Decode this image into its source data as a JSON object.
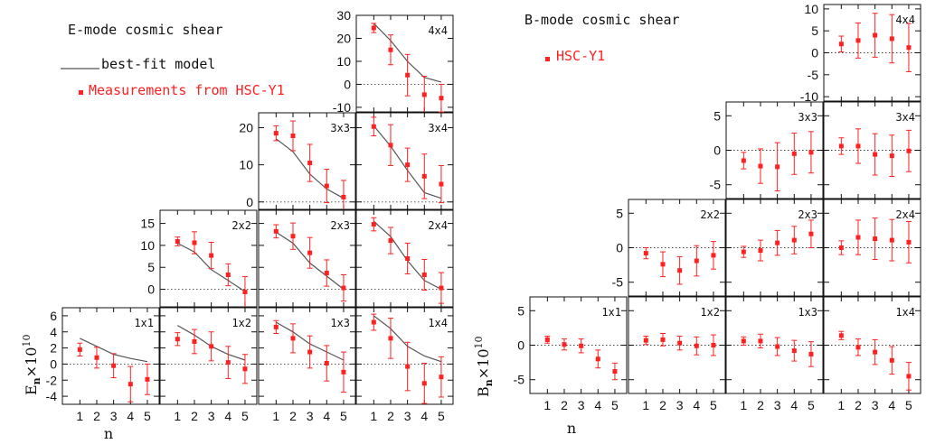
{
  "chart_data": [
    {
      "type": "scatter",
      "title": "E-mode cosmic shear",
      "xlabel": "n",
      "ylabel_main": "E",
      "ylabel_sub": "n",
      "ylabel_factor": "×10",
      "ylabel_exp": "10",
      "legend": {
        "model": "best-fit model",
        "data": "Measurements from HSC-Y1"
      },
      "x_ticks": [
        "1",
        "2",
        "3",
        "4",
        "5"
      ],
      "colors": {
        "data": "#ff2020",
        "model": "#555555",
        "zero": "#444444"
      },
      "panels": [
        {
          "name": "4x4",
          "ylim": [
            -12,
            30
          ],
          "yticks": [
            -10,
            0,
            10,
            20,
            30
          ],
          "y": [
            24.5,
            15,
            4,
            -4.5,
            -6
          ],
          "err": [
            2,
            6.5,
            9,
            8,
            6
          ],
          "model": [
            26.5,
            19,
            10,
            3,
            1
          ]
        },
        {
          "name": "3x3",
          "ylim": [
            -2,
            24
          ],
          "yticks": [
            0,
            10,
            20
          ],
          "y": [
            18.5,
            17.8,
            10.5,
            4.3,
            1.3
          ],
          "err": [
            2,
            4,
            5,
            4.5,
            4.5
          ],
          "model": [
            17,
            13.5,
            7.5,
            3.5,
            1
          ]
        },
        {
          "name": "3x4",
          "ylim": [
            -2,
            24
          ],
          "yticks": [
            0,
            10,
            20
          ],
          "y": [
            20.3,
            15.3,
            10,
            6.9,
            4.8
          ],
          "err": [
            2.5,
            5.5,
            4.5,
            6,
            5
          ],
          "model": [
            20.5,
            15,
            8.5,
            2.5,
            1
          ]
        },
        {
          "name": "2x2",
          "ylim": [
            -4,
            18
          ],
          "yticks": [
            0,
            5,
            10,
            15
          ],
          "y": [
            10.9,
            10.6,
            7.7,
            3.3,
            -0.6
          ],
          "err": [
            1,
            2.5,
            3,
            2.5,
            3.5
          ],
          "model": [
            10.5,
            8.5,
            4.5,
            2,
            -0.5
          ]
        },
        {
          "name": "2x3",
          "ylim": [
            -4,
            18
          ],
          "yticks": [
            0,
            5,
            10,
            15
          ],
          "y": [
            13.2,
            12.1,
            8.3,
            3.7,
            0.3
          ],
          "err": [
            1.5,
            3,
            3.5,
            3,
            3
          ],
          "model": [
            13,
            10.5,
            6,
            3,
            0
          ]
        },
        {
          "name": "2x4",
          "ylim": [
            -4,
            18
          ],
          "yticks": [
            0,
            5,
            10,
            15
          ],
          "y": [
            14.8,
            11.1,
            7,
            3.3,
            0.3
          ],
          "err": [
            1.5,
            3,
            3.5,
            3.5,
            3.5
          ],
          "model": [
            15.5,
            12,
            6.5,
            2,
            0
          ]
        },
        {
          "name": "1x1",
          "ylim": [
            -5,
            7
          ],
          "yticks": [
            -4,
            -2,
            0,
            2,
            4,
            6
          ],
          "y": [
            1.8,
            0.8,
            -0.2,
            -2.5,
            -1.9
          ],
          "err": [
            0.8,
            1.3,
            1.5,
            2.2,
            1.9
          ],
          "model": [
            3.2,
            2.2,
            1.2,
            0.7,
            0.3
          ]
        },
        {
          "name": "1x2",
          "ylim": [
            -5,
            7
          ],
          "yticks": [
            -4,
            -2,
            0,
            2,
            4,
            6
          ],
          "y": [
            3.1,
            2.8,
            2.2,
            0.2,
            -0.6
          ],
          "err": [
            0.8,
            1.5,
            1.8,
            2,
            1.8
          ],
          "model": [
            4.8,
            3.6,
            2.2,
            1.2,
            0.5
          ]
        },
        {
          "name": "1x3",
          "ylim": [
            -5,
            7
          ],
          "yticks": [
            -4,
            -2,
            0,
            2,
            4,
            6
          ],
          "y": [
            4.6,
            3.2,
            1.5,
            0.1,
            -1
          ],
          "err": [
            0.8,
            1.8,
            2,
            2.2,
            2.5
          ],
          "model": [
            5.2,
            4,
            2.5,
            1.5,
            0.5
          ]
        },
        {
          "name": "1x4",
          "ylim": [
            -5,
            7
          ],
          "yticks": [
            -4,
            -2,
            0,
            2,
            4,
            6
          ],
          "y": [
            5.2,
            3.2,
            -0.3,
            -2.4,
            -1.6
          ],
          "err": [
            1,
            2.5,
            3,
            2.5,
            2.5
          ],
          "model": [
            6,
            4.4,
            2.2,
            1,
            0.3
          ]
        }
      ]
    },
    {
      "type": "scatter",
      "title": "B-mode cosmic shear",
      "xlabel": "n",
      "ylabel_main": "B",
      "ylabel_sub": "n",
      "ylabel_factor": "×10",
      "ylabel_exp": "10",
      "legend": {
        "data": "HSC-Y1"
      },
      "x_ticks": [
        "1",
        "2",
        "3",
        "4",
        "5"
      ],
      "colors": {
        "data": "#ff2020",
        "zero": "#444444"
      },
      "panels": [
        {
          "name": "4x4",
          "ylim": [
            -11,
            11
          ],
          "yticks": [
            -10,
            -5,
            0,
            5,
            10
          ],
          "y": [
            2,
            2.8,
            4,
            3.2,
            1.2
          ],
          "err": [
            1.8,
            4,
            5,
            5.5,
            5.5
          ]
        },
        {
          "name": "3x3",
          "ylim": [
            -7,
            7
          ],
          "yticks": [
            -5,
            0,
            5
          ],
          "y": [
            -1.5,
            -2.3,
            -2.4,
            -0.5,
            -0.3
          ],
          "err": [
            1.2,
            2.5,
            3.5,
            3,
            3
          ]
        },
        {
          "name": "3x4",
          "ylim": [
            -7,
            7
          ],
          "yticks": [
            -5,
            0,
            5
          ],
          "y": [
            0.6,
            0.6,
            -0.6,
            -0.8,
            -0.1
          ],
          "err": [
            1.2,
            2.5,
            3,
            3,
            3
          ]
        },
        {
          "name": "2x2",
          "ylim": [
            -7,
            7
          ],
          "yticks": [
            -5,
            0,
            5
          ],
          "y": [
            -0.8,
            -2.4,
            -3.3,
            -1.9,
            -1.1
          ],
          "err": [
            0.8,
            1.8,
            2,
            2.2,
            2
          ]
        },
        {
          "name": "2x3",
          "ylim": [
            -7,
            7
          ],
          "yticks": [
            -5,
            0,
            5
          ],
          "y": [
            -0.6,
            -0.4,
            0.7,
            1.1,
            2
          ],
          "err": [
            0.8,
            1.5,
            1.8,
            2,
            2
          ]
        },
        {
          "name": "2x4",
          "ylim": [
            -7,
            7
          ],
          "yticks": [
            -5,
            0,
            5
          ],
          "y": [
            0,
            1.5,
            1.3,
            1.1,
            0.8
          ],
          "err": [
            1,
            2.5,
            3,
            3,
            3
          ]
        },
        {
          "name": "1x1",
          "ylim": [
            -7,
            7
          ],
          "yticks": [
            -5,
            0,
            5
          ],
          "y": [
            0.8,
            0.1,
            -0.1,
            -2,
            -3.8
          ],
          "err": [
            0.5,
            0.8,
            1,
            1.3,
            1.2
          ]
        },
        {
          "name": "1x2",
          "ylim": [
            -7,
            7
          ],
          "yticks": [
            -5,
            0,
            5
          ],
          "y": [
            0.7,
            0.8,
            0.3,
            -0.1,
            0
          ],
          "err": [
            0.6,
            0.9,
            1,
            1.3,
            1.5
          ]
        },
        {
          "name": "1x3",
          "ylim": [
            -7,
            7
          ],
          "yticks": [
            -5,
            0,
            5
          ],
          "y": [
            0.6,
            0.6,
            -0.2,
            -0.8,
            -1.3
          ],
          "err": [
            0.6,
            1,
            1.3,
            1.5,
            1.8
          ]
        },
        {
          "name": "1x4",
          "ylim": [
            -7,
            7
          ],
          "yticks": [
            -5,
            0,
            5
          ],
          "y": [
            1.4,
            -0.3,
            -1,
            -2.2,
            -4.5
          ],
          "err": [
            0.6,
            1.2,
            1.8,
            2,
            2
          ]
        }
      ]
    }
  ]
}
